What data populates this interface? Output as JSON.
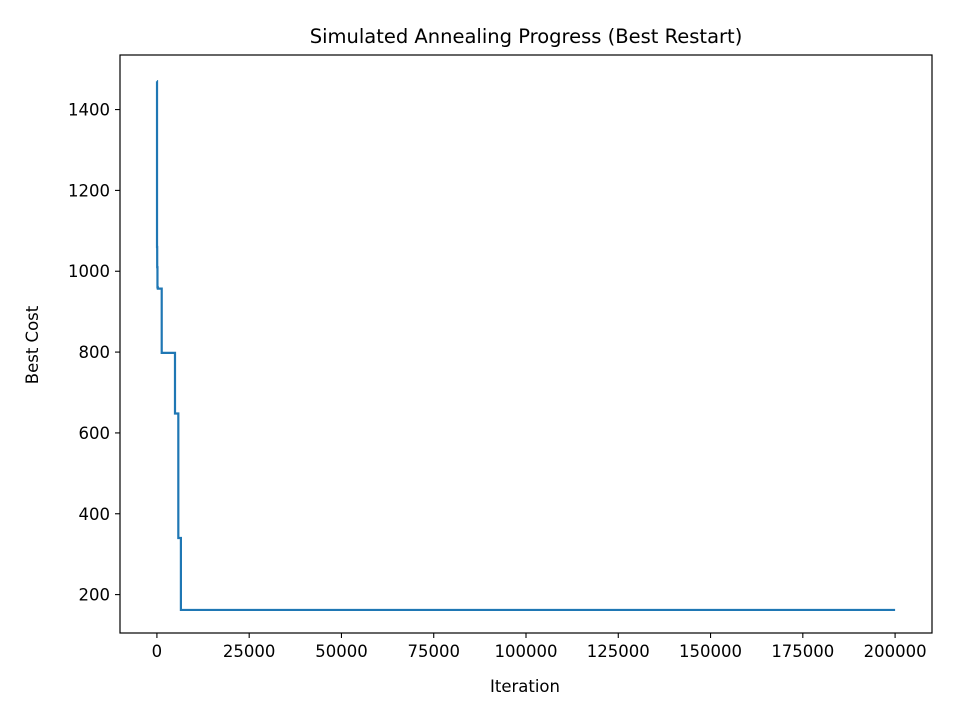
{
  "chart_data": {
    "type": "line",
    "title": "Simulated Annealing Progress (Best Restart)",
    "xlabel": "Iteration",
    "ylabel": "Best Cost",
    "xlim": [
      -10000,
      210000
    ],
    "ylim": [
      105,
      1535
    ],
    "xticks": [
      0,
      25000,
      50000,
      75000,
      100000,
      125000,
      150000,
      175000,
      200000
    ],
    "xtick_labels": [
      "0",
      "25000",
      "50000",
      "75000",
      "100000",
      "125000",
      "150000",
      "175000",
      "200000"
    ],
    "yticks": [
      200,
      400,
      600,
      800,
      1000,
      1200,
      1400
    ],
    "ytick_labels": [
      "200",
      "400",
      "600",
      "800",
      "1000",
      "1200",
      "1400"
    ],
    "grid": false,
    "legend": false,
    "line_color": "#1f77b4",
    "series": [
      {
        "step": true,
        "x": [
          0,
          30,
          80,
          150,
          250,
          1300,
          4900,
          5800,
          6500,
          200000
        ],
        "y": [
          1470,
          1060,
          1010,
          960,
          957,
          798,
          648,
          340,
          162,
          162
        ]
      }
    ]
  }
}
